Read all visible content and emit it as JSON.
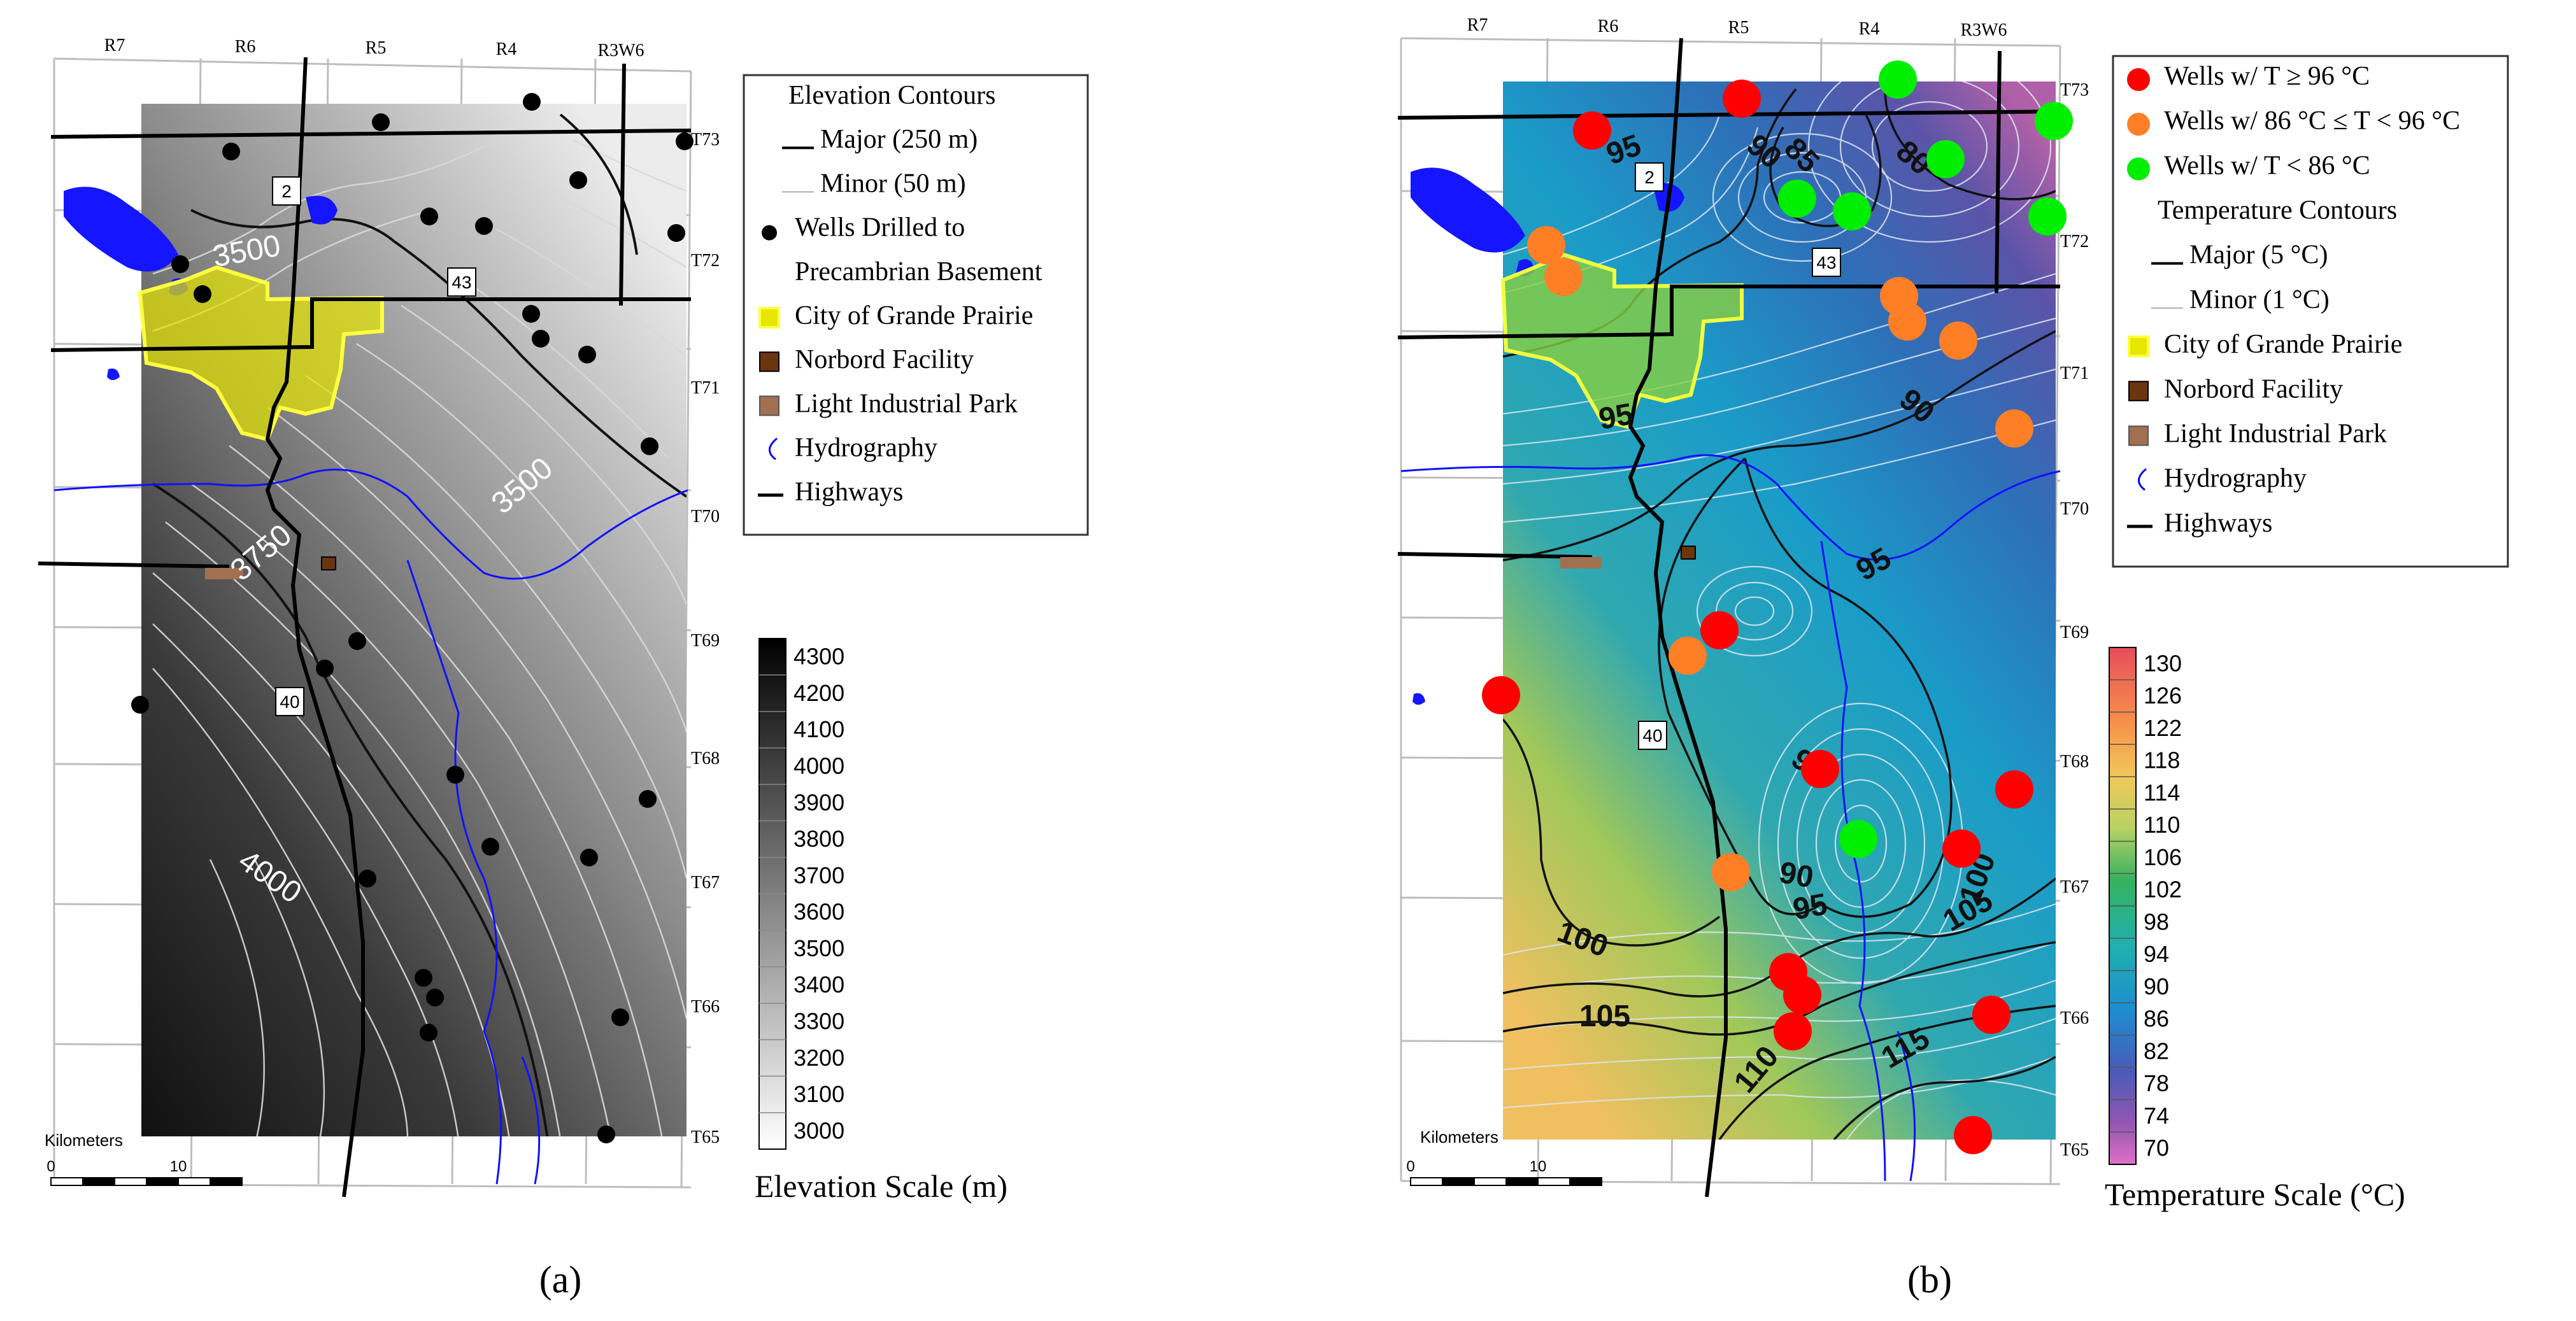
{
  "panels": [
    {
      "id": "a",
      "caption": "(a)",
      "range_labels": [
        "R7",
        "R6",
        "R5",
        "R4",
        "R3W6"
      ],
      "township_labels": [
        "T73",
        "T72",
        "T71",
        "T70",
        "T69",
        "T68",
        "T67",
        "T66",
        "T65"
      ],
      "highway_labels": [
        "2",
        "43",
        "40"
      ],
      "contour_labels": [
        "3500",
        "3500",
        "3750",
        "4000"
      ],
      "scalebar": {
        "title": "Kilometers",
        "ticks": [
          "0",
          "10"
        ]
      },
      "legend": {
        "title": "Elevation Contours",
        "items": [
          {
            "symbol": "major-line",
            "label": "Major (250 m)"
          },
          {
            "symbol": "minor-line",
            "label": "Minor (50 m)"
          },
          {
            "symbol": "black-dot",
            "label": "Wells Drilled to"
          },
          {
            "symbol": "none",
            "label": "Precambrian Basement"
          },
          {
            "symbol": "yellow-box",
            "label": "City of Grande Prairie"
          },
          {
            "symbol": "brown-box",
            "label": "Norbord Facility"
          },
          {
            "symbol": "tan-box",
            "label": "Light Industrial Park"
          },
          {
            "symbol": "hydro",
            "label": "Hydrography"
          },
          {
            "symbol": "highway",
            "label": "Highways"
          }
        ]
      },
      "colorbar": {
        "title": "Elevation Scale (m)",
        "ticks": [
          "4300",
          "4200",
          "4100",
          "4000",
          "3900",
          "3800",
          "3700",
          "3600",
          "3500",
          "3400",
          "3300",
          "3200",
          "3100",
          "3000"
        ]
      }
    },
    {
      "id": "b",
      "caption": "(b)",
      "range_labels": [
        "R7",
        "R6",
        "R5",
        "R4",
        "R3W6"
      ],
      "township_labels": [
        "T73",
        "T72",
        "T71",
        "T70",
        "T69",
        "T68",
        "T67",
        "T66",
        "T65"
      ],
      "highway_labels": [
        "2",
        "43",
        "40"
      ],
      "contour_labels": [
        "95",
        "90",
        "85",
        "80",
        "95",
        "90",
        "95",
        "95",
        "90",
        "95",
        "100",
        "100",
        "105",
        "105",
        "110",
        "115"
      ],
      "scalebar": {
        "title": "Kilometers",
        "ticks": [
          "0",
          "10"
        ]
      },
      "legend": {
        "items": [
          {
            "symbol": "red-dot",
            "label": "Wells w/ T ≥ 96 °C"
          },
          {
            "symbol": "orange-dot",
            "label": "Wells w/ 86 °C ≤ T < 96 °C"
          },
          {
            "symbol": "green-dot",
            "label": "Wells w/ T < 86 °C"
          },
          {
            "symbol": "none",
            "label": "Temperature Contours"
          },
          {
            "symbol": "major-line",
            "label": "Major (5 °C)"
          },
          {
            "symbol": "minor-line",
            "label": "Minor (1 °C)"
          },
          {
            "symbol": "yellow-box",
            "label": "City of Grande Prairie"
          },
          {
            "symbol": "brown-box",
            "label": "Norbord Facility"
          },
          {
            "symbol": "tan-box",
            "label": "Light Industrial Park"
          },
          {
            "symbol": "hydro",
            "label": "Hydrography"
          },
          {
            "symbol": "highway",
            "label": "Highways"
          }
        ]
      },
      "colorbar": {
        "title": "Temperature Scale (°C)",
        "ticks": [
          "130",
          "126",
          "122",
          "118",
          "114",
          "110",
          "106",
          "102",
          "98",
          "94",
          "90",
          "86",
          "82",
          "78",
          "74",
          "70"
        ]
      }
    }
  ],
  "colors": {
    "wells_hot": "#ff0000",
    "wells_mid": "#ff7f27",
    "wells_cool": "#00ee00",
    "city": "#e6e600",
    "norbord": "#6b3510",
    "industrial": "#a07050",
    "hydro": "#0000ff",
    "highway": "#000000"
  }
}
